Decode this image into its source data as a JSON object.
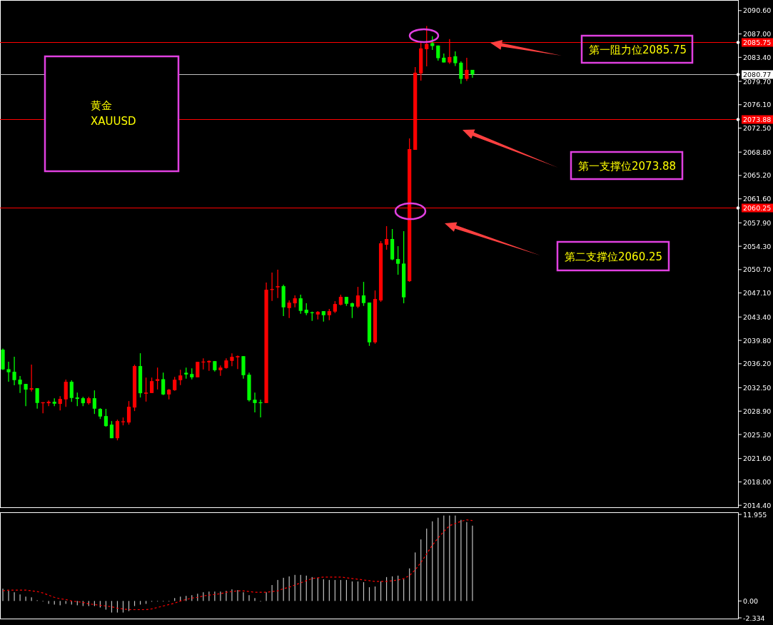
{
  "chart_data": [
    {
      "type": "candlestick",
      "categories": [
        null,
        null,
        null,
        null,
        null,
        null,
        null,
        null,
        null,
        null,
        null,
        null,
        null,
        null,
        null,
        null,
        null,
        null,
        null,
        null,
        null,
        null,
        null,
        null,
        null,
        null,
        null,
        null,
        null,
        null,
        null,
        null,
        null,
        null,
        null,
        null,
        null,
        null,
        null,
        null,
        null,
        null,
        null,
        null,
        null,
        null,
        null,
        null,
        null,
        null,
        null,
        null,
        null,
        null,
        null,
        null,
        null,
        null,
        null,
        null,
        null,
        null,
        null,
        null,
        null,
        null,
        null,
        null,
        null,
        null,
        null,
        null,
        null,
        null,
        null,
        null,
        null,
        null,
        null,
        null,
        null,
        null,
        null,
        null,
        null,
        null,
        null,
        null,
        null,
        null,
        null,
        null,
        null,
        null,
        null,
        null,
        null,
        null,
        null,
        null,
        null,
        null,
        null,
        null,
        null,
        null,
        null,
        null,
        null,
        null,
        null,
        null,
        null,
        null,
        null,
        null,
        null,
        null,
        null,
        null,
        null,
        null,
        null,
        null,
        null,
        null,
        null,
        null,
        null
      ],
      "ohlc": [
        [
          2038.37,
          2038.55,
          2035.25,
          2035.33
        ],
        [
          2035.36,
          2036.5,
          2033.42,
          2034.89
        ],
        [
          2034.96,
          2037.27,
          2032.87,
          2033.68
        ],
        [
          2033.75,
          2034.3,
          2031.7,
          2033.02
        ],
        [
          2033.09,
          2033.09,
          2029.68,
          2032.21
        ],
        [
          2032.21,
          2036.06,
          2031.92,
          2032.43
        ],
        [
          2032.43,
          2032.43,
          2029.28,
          2030.16
        ],
        [
          2030.12,
          2030.27,
          2028.58,
          2030.27
        ],
        [
          2030.12,
          2030.56,
          2029.68,
          2030.34
        ],
        [
          2030.34,
          2030.89,
          2029.68,
          2030.05
        ],
        [
          2030.01,
          2031.22,
          2029.02,
          2030.78
        ],
        [
          2030.71,
          2033.75,
          2029.57,
          2033.42
        ],
        [
          2033.42,
          2033.64,
          2030.34,
          2030.93
        ],
        [
          2031.0,
          2031.77,
          2029.68,
          2030.78
        ],
        [
          2030.89,
          2031.11,
          2029.68,
          2030.12
        ],
        [
          2030.12,
          2031.11,
          2029.9,
          2030.89
        ],
        [
          2030.89,
          2032.1,
          2028.47,
          2029.28
        ],
        [
          2029.24,
          2029.35,
          2027.7,
          2028.07
        ],
        [
          2028.14,
          2029.24,
          2026.49,
          2026.6
        ],
        [
          2026.82,
          2027.37,
          2024.73,
          2024.73
        ],
        [
          2024.73,
          2027.59,
          2024.4,
          2027.37
        ],
        [
          2027.19,
          2027.92,
          2026.71,
          2027.33
        ],
        [
          2027.15,
          2030.45,
          2026.82,
          2029.57
        ],
        [
          2029.46,
          2036.06,
          2028.91,
          2035.84
        ],
        [
          2035.84,
          2037.82,
          2031.0,
          2031.66
        ],
        [
          2031.58,
          2034.07,
          2030.37,
          2031.76
        ],
        [
          2031.69,
          2034.07,
          2031.69,
          2033.52
        ],
        [
          2033.56,
          2035.61,
          2032.24,
          2033.82
        ],
        [
          2033.82,
          2034.84,
          2031.36,
          2031.47
        ],
        [
          2031.47,
          2032.31,
          2030.7,
          2032.2
        ],
        [
          2032.13,
          2034.18,
          2032.02,
          2033.74
        ],
        [
          2033.67,
          2035.28,
          2032.9,
          2034.4
        ],
        [
          2034.81,
          2035.61,
          2033.89,
          2034.55
        ],
        [
          2034.62,
          2035.5,
          2033.78,
          2034.11
        ],
        [
          2034.11,
          2036.49,
          2034.11,
          2036.49
        ],
        [
          2036.42,
          2037.04,
          2035.32,
          2036.53
        ],
        [
          2036.42,
          2036.71,
          2035.1,
          2036.64
        ],
        [
          2036.6,
          2036.6,
          2034.99,
          2035.21
        ],
        [
          2035.21,
          2035.94,
          2034.33,
          2035.61
        ],
        [
          2035.54,
          2037.04,
          2035.43,
          2036.71
        ],
        [
          2036.64,
          2037.81,
          2035.83,
          2037.26
        ],
        [
          2037.19,
          2037.48,
          2035.39,
          2037.37
        ],
        [
          2037.37,
          2037.37,
          2033.89,
          2034.44
        ],
        [
          2034.51,
          2034.84,
          2030.37,
          2030.59
        ],
        [
          2030.66,
          2031.76,
          2028.72,
          2030.15
        ],
        [
          2030.26,
          2030.66,
          2027.95,
          2030.15
        ],
        [
          2030.15,
          2048.7,
          2030.15,
          2047.6
        ],
        [
          2047.56,
          2050.24,
          2045.88,
          2047.71
        ],
        [
          2047.97,
          2050.68,
          2046.32,
          2048.15
        ],
        [
          2048.15,
          2048.37,
          2043.53,
          2044.89
        ],
        [
          2044.78,
          2045.95,
          2043.24,
          2045.62
        ],
        [
          2045.51,
          2046.72,
          2044.89,
          2046.28
        ],
        [
          2046.28,
          2046.83,
          2043.9,
          2044.34
        ],
        [
          2044.52,
          2045.51,
          2043.68,
          2044.01
        ],
        [
          2044.12,
          2044.23,
          2042.8,
          2044.01
        ],
        [
          2043.79,
          2044.3,
          2043.02,
          2044.19
        ],
        [
          2044.3,
          2044.3,
          2042.69,
          2043.68
        ],
        [
          2043.68,
          2044.63,
          2042.91,
          2044.3
        ],
        [
          2044.23,
          2045.84,
          2044.01,
          2045.4
        ],
        [
          2045.29,
          2046.83,
          2045.18,
          2046.5
        ],
        [
          2046.5,
          2046.5,
          2045.11,
          2045.44
        ],
        [
          2045.51,
          2045.62,
          2043.24,
          2045.0
        ],
        [
          2045.0,
          2048.04,
          2044.78,
          2046.72
        ],
        [
          2046.72,
          2048.81,
          2045.11,
          2045.55
        ],
        [
          2045.62,
          2045.62,
          2038.95,
          2039.5
        ],
        [
          2039.5,
          2047.49,
          2039.28,
          2046.17
        ],
        [
          2045.95,
          2055.08,
          2045.73,
          2054.75
        ],
        [
          2054.53,
          2057.39,
          2053.76,
          2055.41
        ],
        [
          2055.41,
          2056.95,
          2052.15,
          2052.26
        ],
        [
          2052.33,
          2054.31,
          2049.91,
          2051.6
        ],
        [
          2051.63,
          2056.62,
          2045.51,
          2046.43
        ],
        [
          2048.92,
          2070.91,
          2048.81,
          2069.26
        ],
        [
          2069.15,
          2081.91,
          2069.15,
          2081.03
        ],
        [
          2080.92,
          2085.65,
          2079.82,
          2084.77
        ],
        [
          2084.66,
          2088.22,
          2082.02,
          2085.47
        ],
        [
          2085.58,
          2086.64,
          2084.55,
          2085.14
        ],
        [
          2085.21,
          2085.21,
          2082.9,
          2083.27
        ],
        [
          2083.34,
          2084.0,
          2082.61,
          2082.61
        ],
        [
          2082.61,
          2086.2,
          2082.39,
          2083.45
        ],
        [
          2083.56,
          2084.33,
          2082.06,
          2082.5
        ],
        [
          2082.57,
          2082.79,
          2079.31,
          2080.08
        ],
        [
          2080.08,
          2083.34,
          2079.75,
          2081.47
        ],
        [
          2081.47,
          2081.47,
          2080.26,
          2080.77
        ],
        null,
        null,
        null,
        null,
        null,
        null,
        null,
        null,
        null,
        null,
        null,
        null,
        null,
        null,
        null,
        null,
        null,
        null,
        null,
        null,
        null,
        null,
        null,
        null,
        null,
        null,
        null,
        null,
        null,
        null,
        null,
        null,
        null,
        null,
        null,
        null,
        null,
        null,
        null,
        null,
        null,
        null,
        null,
        null,
        null,
        null
      ],
      "colors": [
        "#00ff00",
        "#00ff00",
        "#00ff00",
        "#00ff00",
        "#00ff00",
        "#ff0000",
        "#00ff00",
        "#ff0000",
        "#ff0000",
        "#00ff00",
        "#ff0000",
        "#ff0000",
        "#00ff00",
        "#00ff00",
        "#00ff00",
        "#ff0000",
        "#00ff00",
        "#00ff00",
        "#00ff00",
        "#00ff00",
        "#ff0000",
        "#ff0000",
        "#ff0000",
        "#ff0000",
        "#00ff00",
        "#ff0000",
        "#ff0000",
        "#ff0000",
        "#00ff00",
        "#ff0000",
        "#ff0000",
        "#ff0000",
        "#00ff00",
        "#00ff00",
        "#ff0000",
        "#ff0000",
        "#ff0000",
        "#00ff00",
        "#ff0000",
        "#ff0000",
        "#ff0000",
        "#ff0000",
        "#00ff00",
        "#00ff00",
        "#00ff00",
        "#00ff00",
        "#ff0000",
        "#ff0000",
        "#ff0000",
        "#00ff00",
        "#ff0000",
        "#ff0000",
        "#00ff00",
        "#00ff00",
        "#00ff00",
        "#ff0000",
        "#00ff00",
        "#ff0000",
        "#ff0000",
        "#ff0000",
        "#00ff00",
        "#00ff00",
        "#ff0000",
        "#00ff00",
        "#00ff00",
        "#ff0000",
        "#ff0000",
        "#ff0000",
        "#00ff00",
        "#00ff00",
        "#00ff00",
        "#ff0000",
        "#ff0000",
        "#ff0000",
        "#ff0000",
        "#00ff00",
        "#00ff00",
        "#00ff00",
        "#ff0000",
        "#00ff00",
        "#00ff00",
        "#ff0000",
        "#00ff00",
        null,
        null,
        null,
        null,
        null,
        null,
        null,
        null,
        null,
        null,
        null,
        null,
        null,
        null,
        null,
        null,
        null,
        null,
        null,
        null,
        null,
        null,
        null,
        null,
        null,
        null,
        null,
        null,
        null,
        null,
        null,
        null,
        null,
        null,
        null,
        null,
        null,
        null,
        null,
        null,
        null,
        null,
        null,
        null,
        null,
        null
      ],
      "ylim": [
        2014.2,
        2091.9
      ],
      "yticks": [
        {
          "value": 2090.6,
          "label": "2090.60"
        },
        {
          "value": 2087,
          "label": "2087.00"
        },
        {
          "value": 2083.4,
          "label": "2083.40"
        },
        {
          "value": 2079.7,
          "label": "2079.70"
        },
        {
          "value": 2076.1,
          "label": "2076.10"
        },
        {
          "value": 2072.5,
          "label": "2072.50"
        },
        {
          "value": 2068.8,
          "label": "2068.80"
        },
        {
          "value": 2065.2,
          "label": "2065.20"
        },
        {
          "value": 2061.6,
          "label": "2061.60"
        },
        {
          "value": 2057.9,
          "label": "2057.90"
        },
        {
          "value": 2054.3,
          "label": "2054.30"
        },
        {
          "value": 2050.7,
          "label": "2050.70"
        },
        {
          "value": 2047.1,
          "label": "2047.10"
        },
        {
          "value": 2043.4,
          "label": "2043.40"
        },
        {
          "value": 2039.8,
          "label": "2039.80"
        },
        {
          "value": 2036.2,
          "label": "2036.20"
        },
        {
          "value": 2032.5,
          "label": "2032.50"
        },
        {
          "value": 2028.9,
          "label": "2028.90"
        },
        {
          "value": 2025.3,
          "label": "2025.30"
        },
        {
          "value": 2021.6,
          "label": "2021.60"
        },
        {
          "value": 2018,
          "label": "2018.00"
        },
        {
          "value": 2014.4,
          "label": "2014.40"
        }
      ],
      "ref_lines": [
        {
          "axis": "y",
          "value": 2085.75,
          "label": "2085.75",
          "color": "#ff0000"
        },
        {
          "axis": "y",
          "value": 2080.77,
          "label": "2080.77",
          "color": "#c0c0c0"
        },
        {
          "axis": "y",
          "value": 2073.88,
          "label": "2073.88",
          "color": "#ff0000"
        },
        {
          "axis": "y",
          "value": 2060.25,
          "label": "2060.25",
          "color": "#ff0000"
        }
      ],
      "annotations": [
        "黄金\nXAUUSD",
        "第一阻力位2085.75",
        "第一支撑位2073.88",
        "第二支撑位2060.25"
      ],
      "tick_labels": "y"
    },
    {
      "type": "bar",
      "categories": [
        null,
        null,
        null,
        null,
        null,
        null,
        null,
        null,
        null,
        null,
        null,
        null,
        null,
        null,
        null,
        null,
        null,
        null,
        null,
        null,
        null,
        null,
        null,
        null,
        null,
        null,
        null,
        null,
        null,
        null,
        null,
        null,
        null,
        null,
        null,
        null,
        null,
        null,
        null,
        null,
        null,
        null,
        null,
        null,
        null,
        null,
        null,
        null,
        null,
        null,
        null,
        null,
        null,
        null,
        null,
        null,
        null,
        null,
        null,
        null,
        null,
        null,
        null,
        null,
        null,
        null,
        null,
        null,
        null,
        null,
        null,
        null,
        null,
        null,
        null,
        null,
        null,
        null,
        null,
        null,
        null,
        null,
        null,
        null,
        null,
        null,
        null,
        null,
        null,
        null,
        null,
        null,
        null,
        null,
        null,
        null,
        null,
        null,
        null,
        null,
        null,
        null,
        null,
        null,
        null,
        null,
        null,
        null,
        null,
        null,
        null,
        null,
        null,
        null,
        null,
        null,
        null,
        null,
        null,
        null,
        null,
        null,
        null,
        null,
        null,
        null,
        null,
        null,
        null
      ],
      "series": [
        {
          "type": "bar",
          "color": "#c0c0c0",
          "values": [
            1.7,
            1.4,
            1.2,
            0.9,
            0.6,
            0.5,
            0.1,
            0.0,
            -0.4,
            -0.5,
            -0.6,
            -0.4,
            -0.5,
            -0.6,
            -0.7,
            -0.7,
            -0.7,
            -0.9,
            -1.2,
            -1.6,
            -1.6,
            -1.6,
            -1.4,
            -0.7,
            -0.5,
            -0.4,
            -0.1,
            0.0,
            0.0,
            0.0,
            0.4,
            0.6,
            0.7,
            0.8,
            1.0,
            1.2,
            1.3,
            1.3,
            1.3,
            1.4,
            1.6,
            1.5,
            1.2,
            0.8,
            0.4,
            0.0,
            1.2,
            2.2,
            2.9,
            3.2,
            3.4,
            3.6,
            3.6,
            3.5,
            3.3,
            3.2,
            3.0,
            2.9,
            2.9,
            2.9,
            2.9,
            2.7,
            2.7,
            2.6,
            1.9,
            2.0,
            2.7,
            3.3,
            3.4,
            3.5,
            3.0,
            4.5,
            6.7,
            8.5,
            10.0,
            11.0,
            11.5,
            11.8,
            11.8,
            11.8,
            11.2,
            10.9,
            10.4,
            null,
            null,
            null,
            null,
            null,
            null,
            null,
            null,
            null,
            null,
            null,
            null,
            null,
            null,
            null,
            null,
            null,
            null,
            null,
            null,
            null,
            null,
            null,
            null,
            null,
            null,
            null,
            null,
            null,
            null,
            null,
            null,
            null,
            null,
            null,
            null,
            null,
            null,
            null,
            null,
            null,
            null,
            null,
            null,
            null,
            null
          ]
        },
        {
          "type": "line",
          "color": "#ff0000",
          "line_style": "dashed",
          "values": [
            1.4,
            1.5,
            1.5,
            1.5,
            1.5,
            1.4,
            1.3,
            1.1,
            0.8,
            0.5,
            0.3,
            0.2,
            0.0,
            -0.1,
            -0.2,
            -0.4,
            -0.5,
            -0.6,
            -0.7,
            -0.8,
            -1.0,
            -1.1,
            -1.2,
            -1.2,
            -1.2,
            -1.2,
            -1.1,
            -0.9,
            -0.7,
            -0.5,
            -0.3,
            0.0,
            0.2,
            0.4,
            0.5,
            0.7,
            0.8,
            0.9,
            1.0,
            1.2,
            1.3,
            1.4,
            1.4,
            1.3,
            1.2,
            1.2,
            1.2,
            1.3,
            1.4,
            1.7,
            1.9,
            2.2,
            2.5,
            2.8,
            3.1,
            3.2,
            3.3,
            3.3,
            3.3,
            3.3,
            3.2,
            3.1,
            3.0,
            2.9,
            2.8,
            2.7,
            2.7,
            2.7,
            2.8,
            2.9,
            3.1,
            3.5,
            4.3,
            5.3,
            6.5,
            7.7,
            8.7,
            9.6,
            10.4,
            10.7,
            11.0,
            11.2,
            11.1,
            null,
            null,
            null,
            null,
            null,
            null,
            null,
            null,
            null,
            null,
            null,
            null,
            null,
            null,
            null,
            null,
            null,
            null,
            null,
            null,
            null,
            null,
            null,
            null,
            null,
            null,
            null,
            null,
            null,
            null,
            null,
            null,
            null,
            null,
            null,
            null,
            null,
            null,
            null,
            null,
            null,
            null,
            null,
            null,
            null,
            null
          ]
        }
      ],
      "ylim": [
        -2.334,
        11.955
      ],
      "yticks": [
        {
          "value": 11.955,
          "label": "11.955"
        },
        {
          "value": 0,
          "label": "0.00"
        },
        {
          "value": -2.334,
          "label": "-2.334"
        }
      ],
      "tick_labels": "y"
    }
  ]
}
